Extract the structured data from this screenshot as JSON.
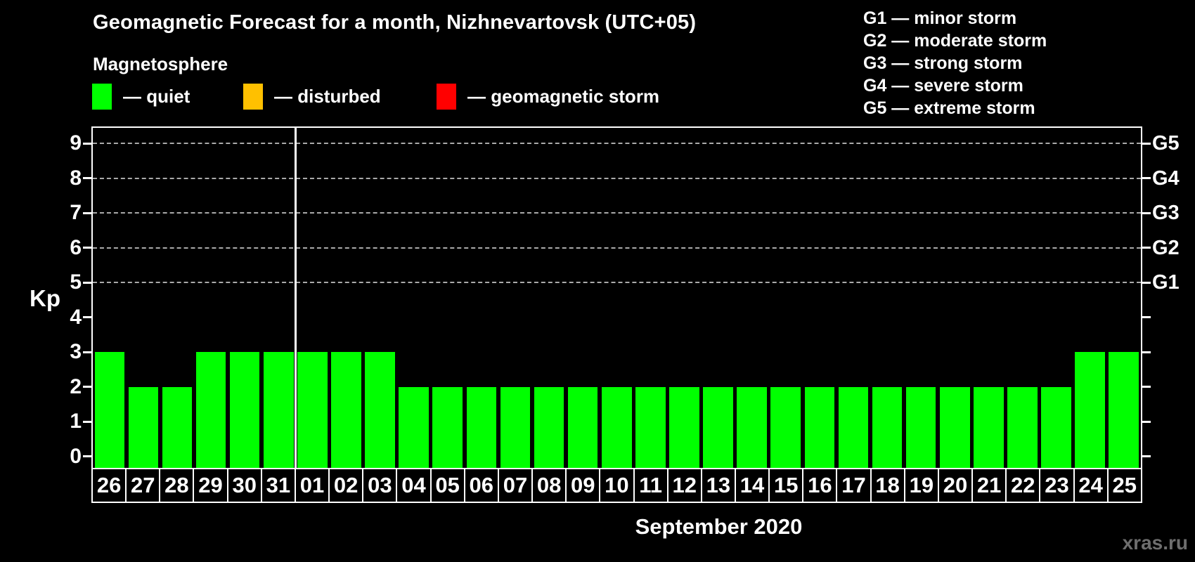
{
  "title": "Geomagnetic Forecast for a month, Nizhnevartovsk (UTC+05)",
  "subtitle": "Magnetosphere",
  "condition_legend": [
    {
      "name": "quiet",
      "label": "— quiet",
      "color": "#00ff00"
    },
    {
      "name": "disturbed",
      "label": "— disturbed",
      "color": "#ffc000"
    },
    {
      "name": "storm",
      "label": "— geomagnetic storm",
      "color": "#ff0000"
    }
  ],
  "storm_scale": [
    "G1 — minor storm",
    "G2 — moderate storm",
    "G3 — strong storm",
    "G4 — severe storm",
    "G5 — extreme storm"
  ],
  "watermark": "xras.ru",
  "chart_data": {
    "type": "bar",
    "title": "Geomagnetic Forecast for a month, Nizhnevartovsk (UTC+05)",
    "ylabel": "Kp",
    "xlabel": "September 2020",
    "categories": [
      "26",
      "27",
      "28",
      "29",
      "30",
      "31",
      "01",
      "02",
      "03",
      "04",
      "05",
      "06",
      "07",
      "08",
      "09",
      "10",
      "11",
      "12",
      "13",
      "14",
      "15",
      "16",
      "17",
      "18",
      "19",
      "20",
      "21",
      "22",
      "23",
      "24",
      "25"
    ],
    "values": [
      3,
      2,
      2,
      3,
      3,
      3,
      3,
      3,
      3,
      2,
      2,
      2,
      2,
      2,
      2,
      2,
      2,
      2,
      2,
      2,
      2,
      2,
      2,
      2,
      2,
      2,
      2,
      2,
      2,
      3,
      3
    ],
    "bar_color": "#00ff00",
    "ylim": [
      -0.33,
      9.45
    ],
    "yticks": [
      0,
      1,
      2,
      3,
      4,
      5,
      6,
      7,
      8,
      9
    ],
    "gridlines_at": [
      5,
      6,
      7,
      8,
      9
    ],
    "grid_color": "#aaaaaa",
    "right_axis": [
      {
        "value": 5,
        "label": "G1"
      },
      {
        "value": 6,
        "label": "G2"
      },
      {
        "value": 7,
        "label": "G3"
      },
      {
        "value": 8,
        "label": "G4"
      },
      {
        "value": 9,
        "label": "G5"
      }
    ],
    "month_separator_after": "31",
    "legend_position": "top-left",
    "grid": true
  }
}
